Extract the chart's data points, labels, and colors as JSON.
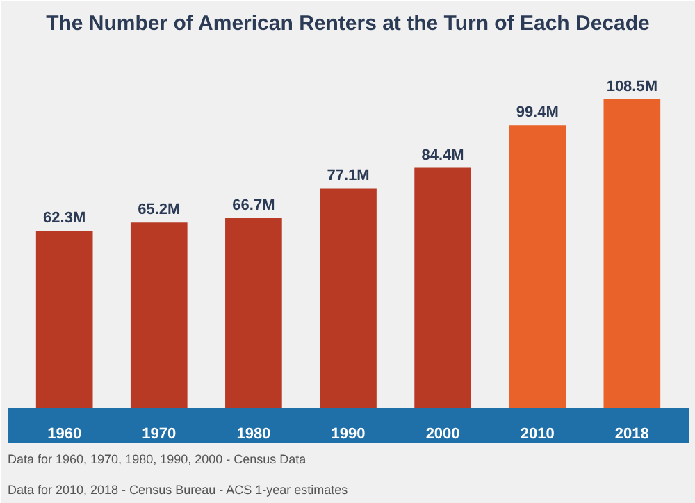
{
  "chart_data": {
    "type": "bar",
    "title": "The Number of American Renters at the Turn of Each Decade",
    "categories": [
      "1960",
      "1970",
      "1980",
      "1990",
      "2000",
      "2010",
      "2018"
    ],
    "values": [
      62.3,
      65.2,
      66.7,
      77.1,
      84.4,
      99.4,
      108.5
    ],
    "colors": [
      "#b83a24",
      "#b83a24",
      "#b83a24",
      "#b83a24",
      "#b83a24",
      "#e8622a",
      "#e8622a"
    ],
    "value_labels": [
      "62.3M",
      "65.2M",
      "66.7M",
      "77.1M",
      "84.4M",
      "99.4M",
      "108.5M"
    ],
    "grid": false,
    "annotations": [
      "Data for 1960, 1970, 1980, 1990, 2000 - Census Data",
      "Data for 2010, 2018 - Census Bureau - ACS 1-year estimates"
    ]
  }
}
